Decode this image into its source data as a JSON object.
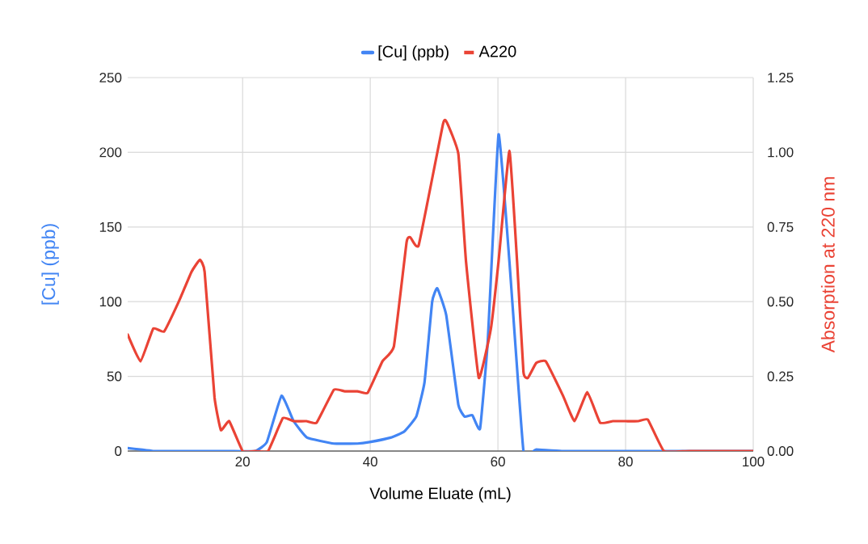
{
  "chart_data": {
    "type": "line",
    "xlabel": "Volume Eluate (mL)",
    "ylabel": "[Cu] (ppb)",
    "y2label": "Absorption at 220 nm",
    "xlim": [
      2,
      100
    ],
    "xticks": [
      20,
      40,
      60,
      80,
      100
    ],
    "ylim": [
      0,
      250
    ],
    "yticks": [
      0,
      50,
      100,
      150,
      200,
      250
    ],
    "y2lim": [
      0,
      1.25
    ],
    "y2ticks": [
      {
        "value": 0,
        "label": "0.00"
      },
      {
        "value": 0.25,
        "label": "0.25"
      },
      {
        "value": 0.5,
        "label": "0.50"
      },
      {
        "value": 0.75,
        "label": "0.75"
      },
      {
        "value": 1.0,
        "label": "1.00"
      },
      {
        "value": 1.25,
        "label": "1.25"
      }
    ],
    "grid": true,
    "legend": "top",
    "series": [
      {
        "name": "[Cu] (ppb)",
        "color": "#4285f4",
        "x": [
          2,
          4,
          6,
          10,
          14,
          18,
          22,
          23.8,
          26.1,
          28,
          30.1,
          34.3,
          38,
          39.9,
          43.2,
          45.3,
          47.2,
          48.5,
          49.7,
          50.5,
          51.9,
          53.8,
          54.8,
          56,
          57.2,
          58.4,
          60.1,
          61.8,
          64,
          66,
          70,
          80,
          90,
          100
        ],
        "values": [
          2,
          1,
          0,
          0,
          0,
          0,
          0,
          6,
          37,
          20,
          9,
          5,
          5,
          6,
          9,
          13,
          23,
          46,
          100,
          109,
          91,
          31,
          23,
          24,
          15,
          73,
          212,
          127,
          0,
          1,
          0,
          0,
          0,
          0
        ]
      },
      {
        "name": "A220",
        "color": "#ea4335",
        "axis": "y2",
        "x": [
          2,
          4,
          6,
          7.7,
          10,
          12,
          13.3,
          14.05,
          15.6,
          16.6,
          17.9,
          20,
          22,
          24,
          26.3,
          28,
          30,
          31.6,
          34.3,
          36,
          38,
          39.6,
          41.9,
          43.7,
          45.7,
          46.3,
          47.6,
          51.4,
          52,
          53.8,
          55,
          57,
          58.9,
          60.1,
          61.8,
          63,
          64,
          64.7,
          66,
          67.5,
          70.2,
          72,
          74,
          76,
          78,
          80,
          82,
          83.5,
          86,
          90,
          100
        ],
        "values": [
          0.39,
          0.3,
          0.41,
          0.4,
          0.5,
          0.6,
          0.64,
          0.6,
          0.18,
          0.07,
          0.1,
          0,
          0,
          0,
          0.11,
          0.1,
          0.1,
          0.095,
          0.205,
          0.2,
          0.2,
          0.195,
          0.3,
          0.35,
          0.7,
          0.715,
          0.69,
          1.095,
          1.1,
          0.995,
          0.635,
          0.245,
          0.41,
          0.635,
          1.005,
          0.635,
          0.265,
          0.245,
          0.295,
          0.3,
          0.185,
          0.1,
          0.197,
          0.095,
          0.1,
          0.1,
          0.1,
          0.105,
          0,
          0,
          0
        ]
      }
    ]
  }
}
